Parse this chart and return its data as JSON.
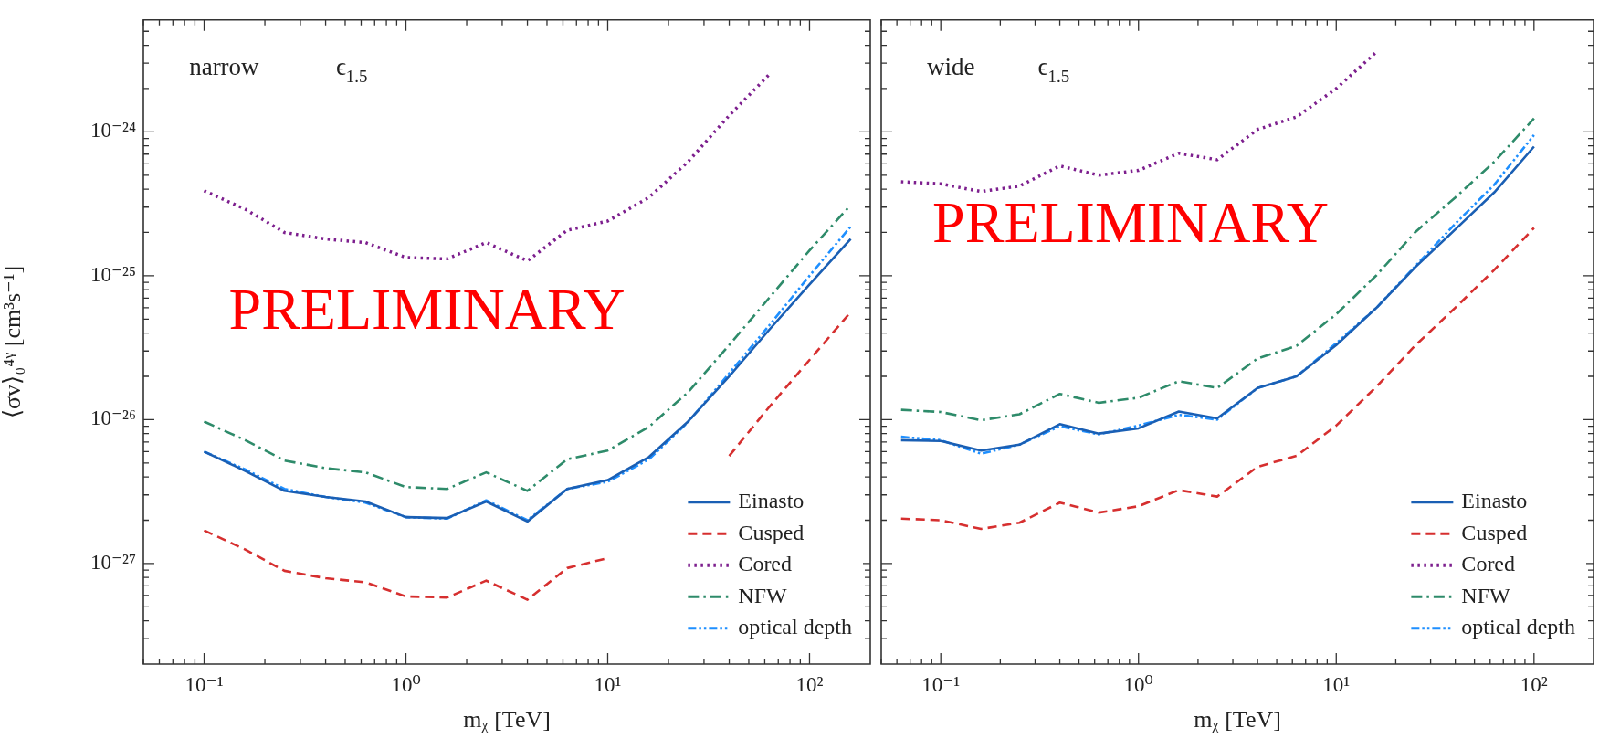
{
  "chart_data": [
    {
      "type": "line",
      "xlabel": "mᵪ [TeV]",
      "ylabel": "⟨σv⟩₀⁴ᵞ [cm³s⁻¹]",
      "log": "xy",
      "legend": "bottom right",
      "annotations": [
        "narrow",
        "ϵ$_{1.5}$",
        "PRELIMINARY"
      ],
      "xlim": [
        0.05,
        200
      ],
      "ylim": [
        2e-28,
        6e-24
      ],
      "xticks": [
        {
          "value": 0.05,
          "label": null
        },
        {
          "value": 0.06,
          "label": null
        },
        {
          "value": 0.07,
          "label": null
        },
        {
          "value": 0.08,
          "label": null
        },
        {
          "value": 0.09,
          "label": null
        },
        {
          "value": 0.1,
          "label": "10⁻¹"
        },
        {
          "value": 0.2,
          "label": null
        },
        {
          "value": 0.3,
          "label": null
        },
        {
          "value": 0.4,
          "label": null
        },
        {
          "value": 0.5,
          "label": null
        },
        {
          "value": 0.6,
          "label": null
        },
        {
          "value": 0.7,
          "label": null
        },
        {
          "value": 0.8,
          "label": null
        },
        {
          "value": 0.9,
          "label": null
        },
        {
          "value": 1,
          "label": "10⁰"
        },
        {
          "value": 2,
          "label": null
        },
        {
          "value": 3,
          "label": null
        },
        {
          "value": 4,
          "label": null
        },
        {
          "value": 5,
          "label": null
        },
        {
          "value": 6,
          "label": null
        },
        {
          "value": 7,
          "label": null
        },
        {
          "value": 8,
          "label": null
        },
        {
          "value": 9,
          "label": null
        },
        {
          "value": 10,
          "label": "10¹"
        },
        {
          "value": 20,
          "label": null
        },
        {
          "value": 30,
          "label": null
        },
        {
          "value": 40,
          "label": null
        },
        {
          "value": 50,
          "label": null
        },
        {
          "value": 60,
          "label": null
        },
        {
          "value": 70,
          "label": null
        },
        {
          "value": 80,
          "label": null
        },
        {
          "value": 90,
          "label": null
        },
        {
          "value": 100,
          "label": "10²"
        }
      ],
      "yticks": [
        {
          "value": 3e-28,
          "label": null
        },
        {
          "value": 4e-28,
          "label": null
        },
        {
          "value": 5e-28,
          "label": null
        },
        {
          "value": 6e-28,
          "label": null
        },
        {
          "value": 7e-28,
          "label": null
        },
        {
          "value": 8e-28,
          "label": null
        },
        {
          "value": 9e-28,
          "label": null
        },
        {
          "value": 1e-27,
          "label": "10⁻²⁷"
        },
        {
          "value": 2e-27,
          "label": null
        },
        {
          "value": 3e-27,
          "label": null
        },
        {
          "value": 4e-27,
          "label": null
        },
        {
          "value": 5e-27,
          "label": null
        },
        {
          "value": 6e-27,
          "label": null
        },
        {
          "value": 7e-27,
          "label": null
        },
        {
          "value": 8e-27,
          "label": null
        },
        {
          "value": 9e-27,
          "label": null
        },
        {
          "value": 1e-26,
          "label": "10⁻²⁶"
        },
        {
          "value": 2e-26,
          "label": null
        },
        {
          "value": 3e-26,
          "label": null
        },
        {
          "value": 4e-26,
          "label": null
        },
        {
          "value": 5e-26,
          "label": null
        },
        {
          "value": 6e-26,
          "label": null
        },
        {
          "value": 7e-26,
          "label": null
        },
        {
          "value": 8e-26,
          "label": null
        },
        {
          "value": 9e-26,
          "label": null
        },
        {
          "value": 1e-25,
          "label": "10⁻²⁵"
        },
        {
          "value": 2e-25,
          "label": null
        },
        {
          "value": 3e-25,
          "label": null
        },
        {
          "value": 4e-25,
          "label": null
        },
        {
          "value": 5e-25,
          "label": null
        },
        {
          "value": 6e-25,
          "label": null
        },
        {
          "value": 7e-25,
          "label": null
        },
        {
          "value": 8e-25,
          "label": null
        },
        {
          "value": 9e-25,
          "label": null
        },
        {
          "value": 1e-24,
          "label": "10⁻²⁴"
        },
        {
          "value": 2e-24,
          "label": null
        },
        {
          "value": 3e-24,
          "label": null
        },
        {
          "value": 4e-24,
          "label": null
        },
        {
          "value": 5e-24,
          "label": null
        }
      ],
      "x": [
        0.1,
        0.16,
        0.25,
        0.4,
        0.63,
        1,
        1.6,
        2.5,
        4,
        6.3,
        10,
        16,
        25,
        40,
        63,
        100,
        160
      ],
      "series": [
        {
          "name": "Einasto",
          "color": "#1a5fb4",
          "line_style": "solid",
          "values": [
            6e-27,
            4.4e-27,
            3.2e-27,
            2.9e-27,
            2.7e-27,
            2.1e-27,
            2.07e-27,
            2.7e-27,
            1.96e-27,
            3.3e-27,
            3.8e-27,
            5.5e-27,
            9.7e-27,
            2e-26,
            4.2e-26,
            8.7e-26,
            1.8e-25
          ]
        },
        {
          "name": "Cusped",
          "color": "#d62f2f",
          "line_style": "dashed",
          "values": [
            1.7e-27,
            1.25e-27,
            8.9e-28,
            7.9e-28,
            7.4e-28,
            5.9e-28,
            5.8e-28,
            7.6e-28,
            5.6e-28,
            9.3e-28,
            1.09e-27,
            null,
            null,
            5.6e-27,
            1.22e-26,
            2.6e-26,
            5.6e-26
          ]
        },
        {
          "name": "Cored",
          "color": "#7d1f8e",
          "line_style": "dotted",
          "values": [
            3.9e-25,
            2.9e-25,
            2e-25,
            1.8e-25,
            1.7e-25,
            1.34e-25,
            1.31e-25,
            1.7e-25,
            1.27e-25,
            2.07e-25,
            2.4e-25,
            3.5e-25,
            6.2e-25,
            1.3e-24,
            2.5e-24,
            null,
            null
          ]
        },
        {
          "name": "NFW",
          "color": "#2e8b6a",
          "line_style": "dashdot",
          "values": [
            9.7e-27,
            7.2e-27,
            5.2e-27,
            4.6e-27,
            4.3e-27,
            3.4e-27,
            3.3e-27,
            4.3e-27,
            3.2e-27,
            5.3e-27,
            6.1e-27,
            8.9e-27,
            1.55e-26,
            3.3e-26,
            7e-26,
            1.5e-25,
            3.1e-25
          ]
        },
        {
          "name": "optical depth",
          "color": "#1e8fff",
          "line_style": "dashdotdot",
          "values": [
            6e-27,
            4.5e-27,
            3.3e-27,
            2.9e-27,
            2.65e-27,
            2.1e-27,
            2.05e-27,
            2.75e-27,
            2e-27,
            3.3e-27,
            3.7e-27,
            5.3e-27,
            9.6e-27,
            2.1e-26,
            4.5e-26,
            1e-25,
            2.2e-25
          ]
        }
      ]
    },
    {
      "type": "line",
      "xlabel": "mᵪ [TeV]",
      "log": "xy",
      "legend": "bottom right",
      "tick_labels": "x",
      "annotations": [
        "wide",
        "ϵ$_{1.5}$",
        "PRELIMINARY"
      ],
      "xlim": [
        0.05,
        200
      ],
      "ylim": [
        2e-28,
        6e-24
      ],
      "xticks": [
        {
          "value": 0.05,
          "label": null
        },
        {
          "value": 0.06,
          "label": null
        },
        {
          "value": 0.07,
          "label": null
        },
        {
          "value": 0.08,
          "label": null
        },
        {
          "value": 0.09,
          "label": null
        },
        {
          "value": 0.1,
          "label": "10⁻¹"
        },
        {
          "value": 0.2,
          "label": null
        },
        {
          "value": 0.3,
          "label": null
        },
        {
          "value": 0.4,
          "label": null
        },
        {
          "value": 0.5,
          "label": null
        },
        {
          "value": 0.6,
          "label": null
        },
        {
          "value": 0.7,
          "label": null
        },
        {
          "value": 0.8,
          "label": null
        },
        {
          "value": 0.9,
          "label": null
        },
        {
          "value": 1,
          "label": "10⁰"
        },
        {
          "value": 2,
          "label": null
        },
        {
          "value": 3,
          "label": null
        },
        {
          "value": 4,
          "label": null
        },
        {
          "value": 5,
          "label": null
        },
        {
          "value": 6,
          "label": null
        },
        {
          "value": 7,
          "label": null
        },
        {
          "value": 8,
          "label": null
        },
        {
          "value": 9,
          "label": null
        },
        {
          "value": 10,
          "label": "10¹"
        },
        {
          "value": 20,
          "label": null
        },
        {
          "value": 30,
          "label": null
        },
        {
          "value": 40,
          "label": null
        },
        {
          "value": 50,
          "label": null
        },
        {
          "value": 60,
          "label": null
        },
        {
          "value": 70,
          "label": null
        },
        {
          "value": 80,
          "label": null
        },
        {
          "value": 90,
          "label": null
        },
        {
          "value": 100,
          "label": "10²"
        }
      ],
      "yticks": [
        {
          "value": 3e-28,
          "label": null
        },
        {
          "value": 4e-28,
          "label": null
        },
        {
          "value": 5e-28,
          "label": null
        },
        {
          "value": 6e-28,
          "label": null
        },
        {
          "value": 7e-28,
          "label": null
        },
        {
          "value": 8e-28,
          "label": null
        },
        {
          "value": 9e-28,
          "label": null
        },
        {
          "value": 1e-27,
          "label": null
        },
        {
          "value": 2e-27,
          "label": null
        },
        {
          "value": 3e-27,
          "label": null
        },
        {
          "value": 4e-27,
          "label": null
        },
        {
          "value": 5e-27,
          "label": null
        },
        {
          "value": 6e-27,
          "label": null
        },
        {
          "value": 7e-27,
          "label": null
        },
        {
          "value": 8e-27,
          "label": null
        },
        {
          "value": 9e-27,
          "label": null
        },
        {
          "value": 1e-26,
          "label": null
        },
        {
          "value": 2e-26,
          "label": null
        },
        {
          "value": 3e-26,
          "label": null
        },
        {
          "value": 4e-26,
          "label": null
        },
        {
          "value": 5e-26,
          "label": null
        },
        {
          "value": 6e-26,
          "label": null
        },
        {
          "value": 7e-26,
          "label": null
        },
        {
          "value": 8e-26,
          "label": null
        },
        {
          "value": 9e-26,
          "label": null
        },
        {
          "value": 1e-25,
          "label": null
        },
        {
          "value": 2e-25,
          "label": null
        },
        {
          "value": 3e-25,
          "label": null
        },
        {
          "value": 4e-25,
          "label": null
        },
        {
          "value": 5e-25,
          "label": null
        },
        {
          "value": 6e-25,
          "label": null
        },
        {
          "value": 7e-25,
          "label": null
        },
        {
          "value": 8e-25,
          "label": null
        },
        {
          "value": 9e-25,
          "label": null
        },
        {
          "value": 1e-24,
          "label": null
        },
        {
          "value": 2e-24,
          "label": null
        },
        {
          "value": 3e-24,
          "label": null
        },
        {
          "value": 4e-24,
          "label": null
        },
        {
          "value": 5e-24,
          "label": null
        }
      ],
      "x": [
        0.063,
        0.1,
        0.16,
        0.25,
        0.4,
        0.63,
        1,
        1.6,
        2.5,
        4,
        6.3,
        10,
        16,
        25,
        40,
        63,
        100
      ],
      "series": [
        {
          "name": "Einasto",
          "color": "#1a5fb4",
          "line_style": "solid",
          "values": [
            7.2e-27,
            7.1e-27,
            6.1e-27,
            6.7e-27,
            9.3e-27,
            8e-27,
            8.7e-27,
            1.14e-26,
            1.02e-26,
            1.66e-26,
            2e-26,
            3.3e-26,
            6e-26,
            1.14e-25,
            2.1e-25,
            3.8e-25,
            7.9e-25
          ]
        },
        {
          "name": "Cusped",
          "color": "#d62f2f",
          "line_style": "dashed",
          "values": [
            2.05e-27,
            2e-27,
            1.74e-27,
            1.92e-27,
            2.65e-27,
            2.26e-27,
            2.5e-27,
            3.24e-27,
            2.92e-27,
            4.7e-27,
            5.6e-27,
            9.1e-27,
            1.7e-26,
            3.26e-26,
            6e-26,
            1.1e-25,
            2.15e-25
          ]
        },
        {
          "name": "Cored",
          "color": "#7d1f8e",
          "line_style": "dotted",
          "values": [
            4.5e-25,
            4.35e-25,
            3.85e-25,
            4.2e-25,
            5.8e-25,
            5e-25,
            5.4e-25,
            7.1e-25,
            6.4e-25,
            1.04e-24,
            1.27e-24,
            2e-24,
            3.6e-24,
            null,
            null,
            null,
            null
          ]
        },
        {
          "name": "NFW",
          "color": "#2e8b6a",
          "line_style": "dashdot",
          "values": [
            1.17e-26,
            1.13e-26,
            9.9e-27,
            1.09e-26,
            1.51e-26,
            1.31e-26,
            1.42e-26,
            1.85e-26,
            1.66e-26,
            2.66e-26,
            3.26e-26,
            5.4e-26,
            1.01e-25,
            2e-25,
            3.5e-25,
            6.2e-25,
            1.24e-24
          ]
        },
        {
          "name": "optical depth",
          "color": "#1e8fff",
          "line_style": "dashdotdot",
          "values": [
            7.6e-27,
            7.2e-27,
            5.8e-27,
            6.7e-27,
            9e-27,
            7.9e-27,
            9.1e-27,
            1.08e-26,
            1e-26,
            1.66e-26,
            2e-26,
            3.4e-26,
            6e-26,
            1.16e-25,
            2.3e-25,
            4.3e-25,
            9.5e-25
          ]
        }
      ]
    }
  ]
}
